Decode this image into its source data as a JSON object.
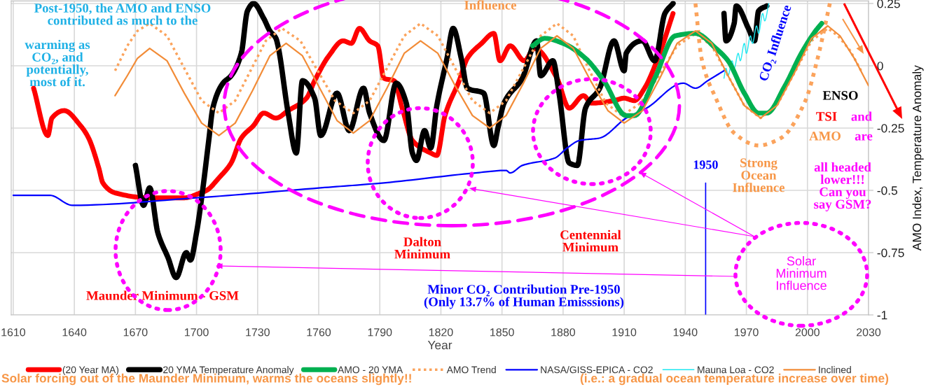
{
  "chart_data": {
    "type": "line",
    "xlabel": "Year",
    "ylabel": "AMO Index, Temperature Anomaly",
    "xlim": [
      1609,
      2030
    ],
    "xticks": [
      1610,
      1640,
      1670,
      1700,
      1730,
      1760,
      1790,
      1820,
      1850,
      1880,
      1910,
      1940,
      1970,
      2000,
      2030
    ],
    "ylim": [
      -1,
      0.26
    ],
    "yticks": [
      -1,
      -0.75,
      -0.5,
      -0.25,
      0,
      0.25
    ],
    "grid": true,
    "legend": "bottom",
    "series": [
      {
        "name": "(20 Year MA)",
        "color": "#ff0000",
        "x": [
          1620,
          1627,
          1629,
          1635,
          1643,
          1647,
          1652,
          1654,
          1660,
          1677,
          1694,
          1702,
          1705,
          1711,
          1717,
          1722,
          1728,
          1733,
          1739,
          1745,
          1754,
          1758,
          1765,
          1772,
          1776,
          1780,
          1785,
          1789,
          1792,
          1797,
          1801,
          1806,
          1815,
          1818,
          1822,
          1829,
          1833,
          1840,
          1846,
          1849,
          1854,
          1861,
          1866,
          1877,
          1883,
          1890,
          1894,
          1905,
          1910,
          1915,
          1920,
          1927,
          1934
        ],
        "values": [
          -0.09,
          -0.28,
          -0.21,
          -0.18,
          -0.24,
          -0.29,
          -0.41,
          -0.47,
          -0.51,
          -0.53,
          -0.53,
          -0.51,
          -0.5,
          -0.45,
          -0.39,
          -0.29,
          -0.24,
          -0.19,
          -0.21,
          -0.18,
          -0.13,
          -0.06,
          0.04,
          0.1,
          0.09,
          0.15,
          0.1,
          0.08,
          -0.05,
          -0.06,
          -0.17,
          -0.3,
          -0.35,
          -0.36,
          -0.2,
          -0.06,
          0.03,
          0.09,
          0.13,
          0.02,
          0.08,
          0.02,
          0.07,
          -0.05,
          -0.17,
          -0.12,
          -0.15,
          -0.14,
          -0.13,
          -0.14,
          -0.09,
          0.04,
          0.21
        ]
      },
      {
        "name": "20 YMA Temperature Anomaly",
        "color": "#000000",
        "x": [
          1670,
          1674,
          1677,
          1681,
          1686,
          1690,
          1695,
          1697,
          1700,
          1703,
          1706,
          1708,
          1713,
          1717,
          1722,
          1725,
          1728,
          1733,
          1736,
          1739,
          1740,
          1745,
          1749,
          1752,
          1758,
          1761,
          1769,
          1775,
          1782,
          1785,
          1792,
          1798,
          1803,
          1806,
          1808,
          1812,
          1815,
          1818,
          1823,
          1826,
          1830,
          1833,
          1841,
          1846,
          1848,
          1851,
          1860,
          1867,
          1869,
          1875,
          1878,
          1883,
          1887,
          1891,
          1898,
          1905,
          1910,
          1911,
          1919,
          1925,
          1930,
          1934,
          1945,
          1959,
          1960,
          1964,
          1965,
          1971,
          1974,
          1976,
          1980
        ],
        "values": [
          -0.4,
          -0.56,
          -0.49,
          -0.67,
          -0.77,
          -0.85,
          -0.75,
          -0.78,
          -0.67,
          -0.5,
          -0.3,
          -0.17,
          -0.07,
          -0.04,
          0.05,
          0.22,
          0.25,
          0.19,
          0.14,
          0.11,
          0.08,
          -0.19,
          -0.35,
          -0.06,
          -0.13,
          -0.28,
          -0.11,
          -0.26,
          -0.09,
          -0.19,
          -0.3,
          -0.07,
          -0.15,
          -0.35,
          -0.38,
          -0.26,
          -0.33,
          -0.16,
          0.03,
          0.15,
          0.03,
          -0.09,
          -0.11,
          -0.32,
          -0.25,
          -0.15,
          -0.05,
          0.1,
          -0.04,
          0.02,
          -0.11,
          -0.39,
          -0.4,
          -0.17,
          -0.09,
          0.1,
          -0.02,
          0.05,
          0.1,
          0.02,
          0.21,
          0.25,
          null,
          0.21,
          0.1,
          0.17,
          0.24,
          0.15,
          0.1,
          0.22,
          0.24
        ]
      },
      {
        "name": "AMO - 20 YMA",
        "color": "#00b050",
        "x": [
          1865,
          1871,
          1880,
          1891,
          1900,
          1911,
          1915,
          1925,
          1935,
          1945,
          1955,
          1961,
          1969,
          1976,
          1980,
          1989,
          1997,
          2004,
          2007
        ],
        "values": [
          0.08,
          0.11,
          0.09,
          0.03,
          -0.06,
          -0.2,
          -0.2,
          -0.05,
          0.12,
          0.13,
          0.07,
          0.02,
          -0.11,
          -0.19,
          -0.19,
          -0.08,
          0.05,
          0.14,
          0.17
        ]
      },
      {
        "name": "AMO Trend",
        "color": "#fba35c",
        "line_style": "dotted",
        "x": [
          1660,
          1666,
          1671,
          1677,
          1685.5,
          1694,
          1702.5,
          1711,
          1719,
          1726.5,
          1734,
          1742,
          1751,
          1759.5,
          1768,
          1777,
          1785,
          1793.5,
          1802,
          1810,
          1818.5,
          1827,
          1835.5,
          1844,
          1852,
          1860.5,
          1869,
          1877,
          1885,
          1893,
          1901,
          1909,
          1918,
          1927,
          1936,
          1945,
          1953,
          1961,
          1969,
          1977,
          1985,
          1993.5,
          2002,
          2010,
          2015,
          2021,
          2027
        ],
        "values": [
          -0.02,
          0.08,
          0.14,
          0.17,
          0.12,
          -0.01,
          -0.14,
          -0.19,
          -0.14,
          -0.02,
          0.1,
          0.15,
          0.1,
          -0.02,
          -0.14,
          -0.19,
          -0.14,
          -0.01,
          0.12,
          0.17,
          0.12,
          -0.01,
          -0.14,
          -0.19,
          -0.14,
          -0.01,
          0.12,
          0.17,
          0.12,
          -0.02,
          -0.15,
          -0.2,
          -0.15,
          -0.04,
          0.08,
          0.13,
          0.08,
          -0.04,
          -0.16,
          -0.21,
          -0.16,
          -0.03,
          0.1,
          0.15,
          0.12,
          0.06,
          -0.03
        ]
      },
      {
        "color": "#fba35c",
        "line_style": "dotted",
        "x": [
          1945,
          1948,
          1955,
          1964,
          1976,
          1987,
          1999,
          2005,
          2011
        ],
        "values": [
          0.25,
          0.03,
          -0.13,
          -0.27,
          -0.32,
          -0.29,
          -0.14,
          0.03,
          0.25
        ]
      },
      {
        "name": "NASA/GISS-EPICA - CO2",
        "color": "#0000ff",
        "x": [
          1610,
          1628,
          1639,
          1700,
          1761,
          1792,
          1837,
          1852,
          1854,
          1860,
          1876,
          1882,
          1888,
          1898,
          1911,
          1921,
          1939,
          1945,
          1951,
          1959
        ],
        "values": [
          -0.52,
          -0.52,
          -0.56,
          -0.53,
          -0.49,
          -0.47,
          -0.43,
          -0.42,
          -0.43,
          -0.4,
          -0.37,
          -0.33,
          -0.3,
          -0.29,
          -0.21,
          -0.17,
          -0.07,
          -0.09,
          -0.06,
          -0.02
        ]
      },
      {
        "name": "Mauna Loa - CO2",
        "color": "#1ee8f0",
        "x": [
          1959,
          1960,
          1961,
          1963,
          1964,
          1966,
          1967,
          1969,
          1970,
          1972,
          1973,
          1975,
          1976,
          1978,
          1979,
          1981
        ],
        "values": [
          -0.05,
          -0.01,
          -0.04,
          0.02,
          -0.01,
          0.05,
          0.02,
          0.09,
          0.05,
          0.12,
          0.09,
          0.16,
          0.13,
          0.21,
          0.18,
          0.25
        ]
      },
      {
        "name": "Inclined",
        "color": "#f28c38",
        "x": [
          1660,
          1666,
          1671,
          1677,
          1685.5,
          1694,
          1702.5,
          1711,
          1719,
          1727.5,
          1736,
          1744,
          1752,
          1760.5,
          1769,
          1777,
          1785,
          1793.5,
          1802,
          1810,
          1818.5,
          1827,
          1835.5,
          1844,
          1852,
          1860.5,
          1869,
          1877,
          1885,
          1893.5,
          1902,
          1910,
          1919,
          1927.5,
          1936,
          1945,
          1953,
          1961,
          1969,
          1977,
          1985,
          1993.5,
          2002,
          2010,
          2016,
          2023,
          2030
        ],
        "values": [
          -0.12,
          -0.04,
          0.03,
          0.07,
          0.02,
          -0.11,
          -0.23,
          -0.28,
          -0.23,
          -0.1,
          0.04,
          0.09,
          0.04,
          -0.09,
          -0.22,
          -0.27,
          -0.22,
          -0.09,
          0.05,
          0.1,
          0.05,
          -0.08,
          -0.2,
          -0.25,
          -0.2,
          -0.07,
          0.07,
          0.12,
          0.07,
          -0.06,
          -0.18,
          -0.23,
          -0.18,
          -0.05,
          0.09,
          0.14,
          0.09,
          -0.04,
          -0.16,
          -0.21,
          -0.16,
          -0.03,
          0.11,
          0.16,
          0.12,
          0.03,
          -0.08
        ]
      }
    ],
    "ref_lines": [
      {
        "axis": "x",
        "value": 1950,
        "label": "1950",
        "color": "#0000ff"
      }
    ],
    "annotations": [
      "Post-1950, the AMO and ENSO\ncontributed as much to the",
      "warming as\nCO₂, and\npotentially,\nmost of it.",
      "Influence",
      "Maunder Minimum - GSM",
      "Dalton\nMinimum",
      "Centennial\nMinimum",
      "Minor CO₂ Contribution Pre-1950\n(Only 13.7% of Human Emisssions)",
      "CO₂ Influence",
      "ENSO",
      "TSI",
      "and",
      "AMO",
      "are",
      "all headed\nlower!!!\nCan you\nsay GSM?",
      "Strong\nOcean\nInfluence",
      "Solar\nMinimum\nInfluence",
      "Solar forcing out of the Maunder Minimum, warms the oceans slightly!!",
      "(i.e.: a gradual ocean temperature increase over time)"
    ]
  }
}
